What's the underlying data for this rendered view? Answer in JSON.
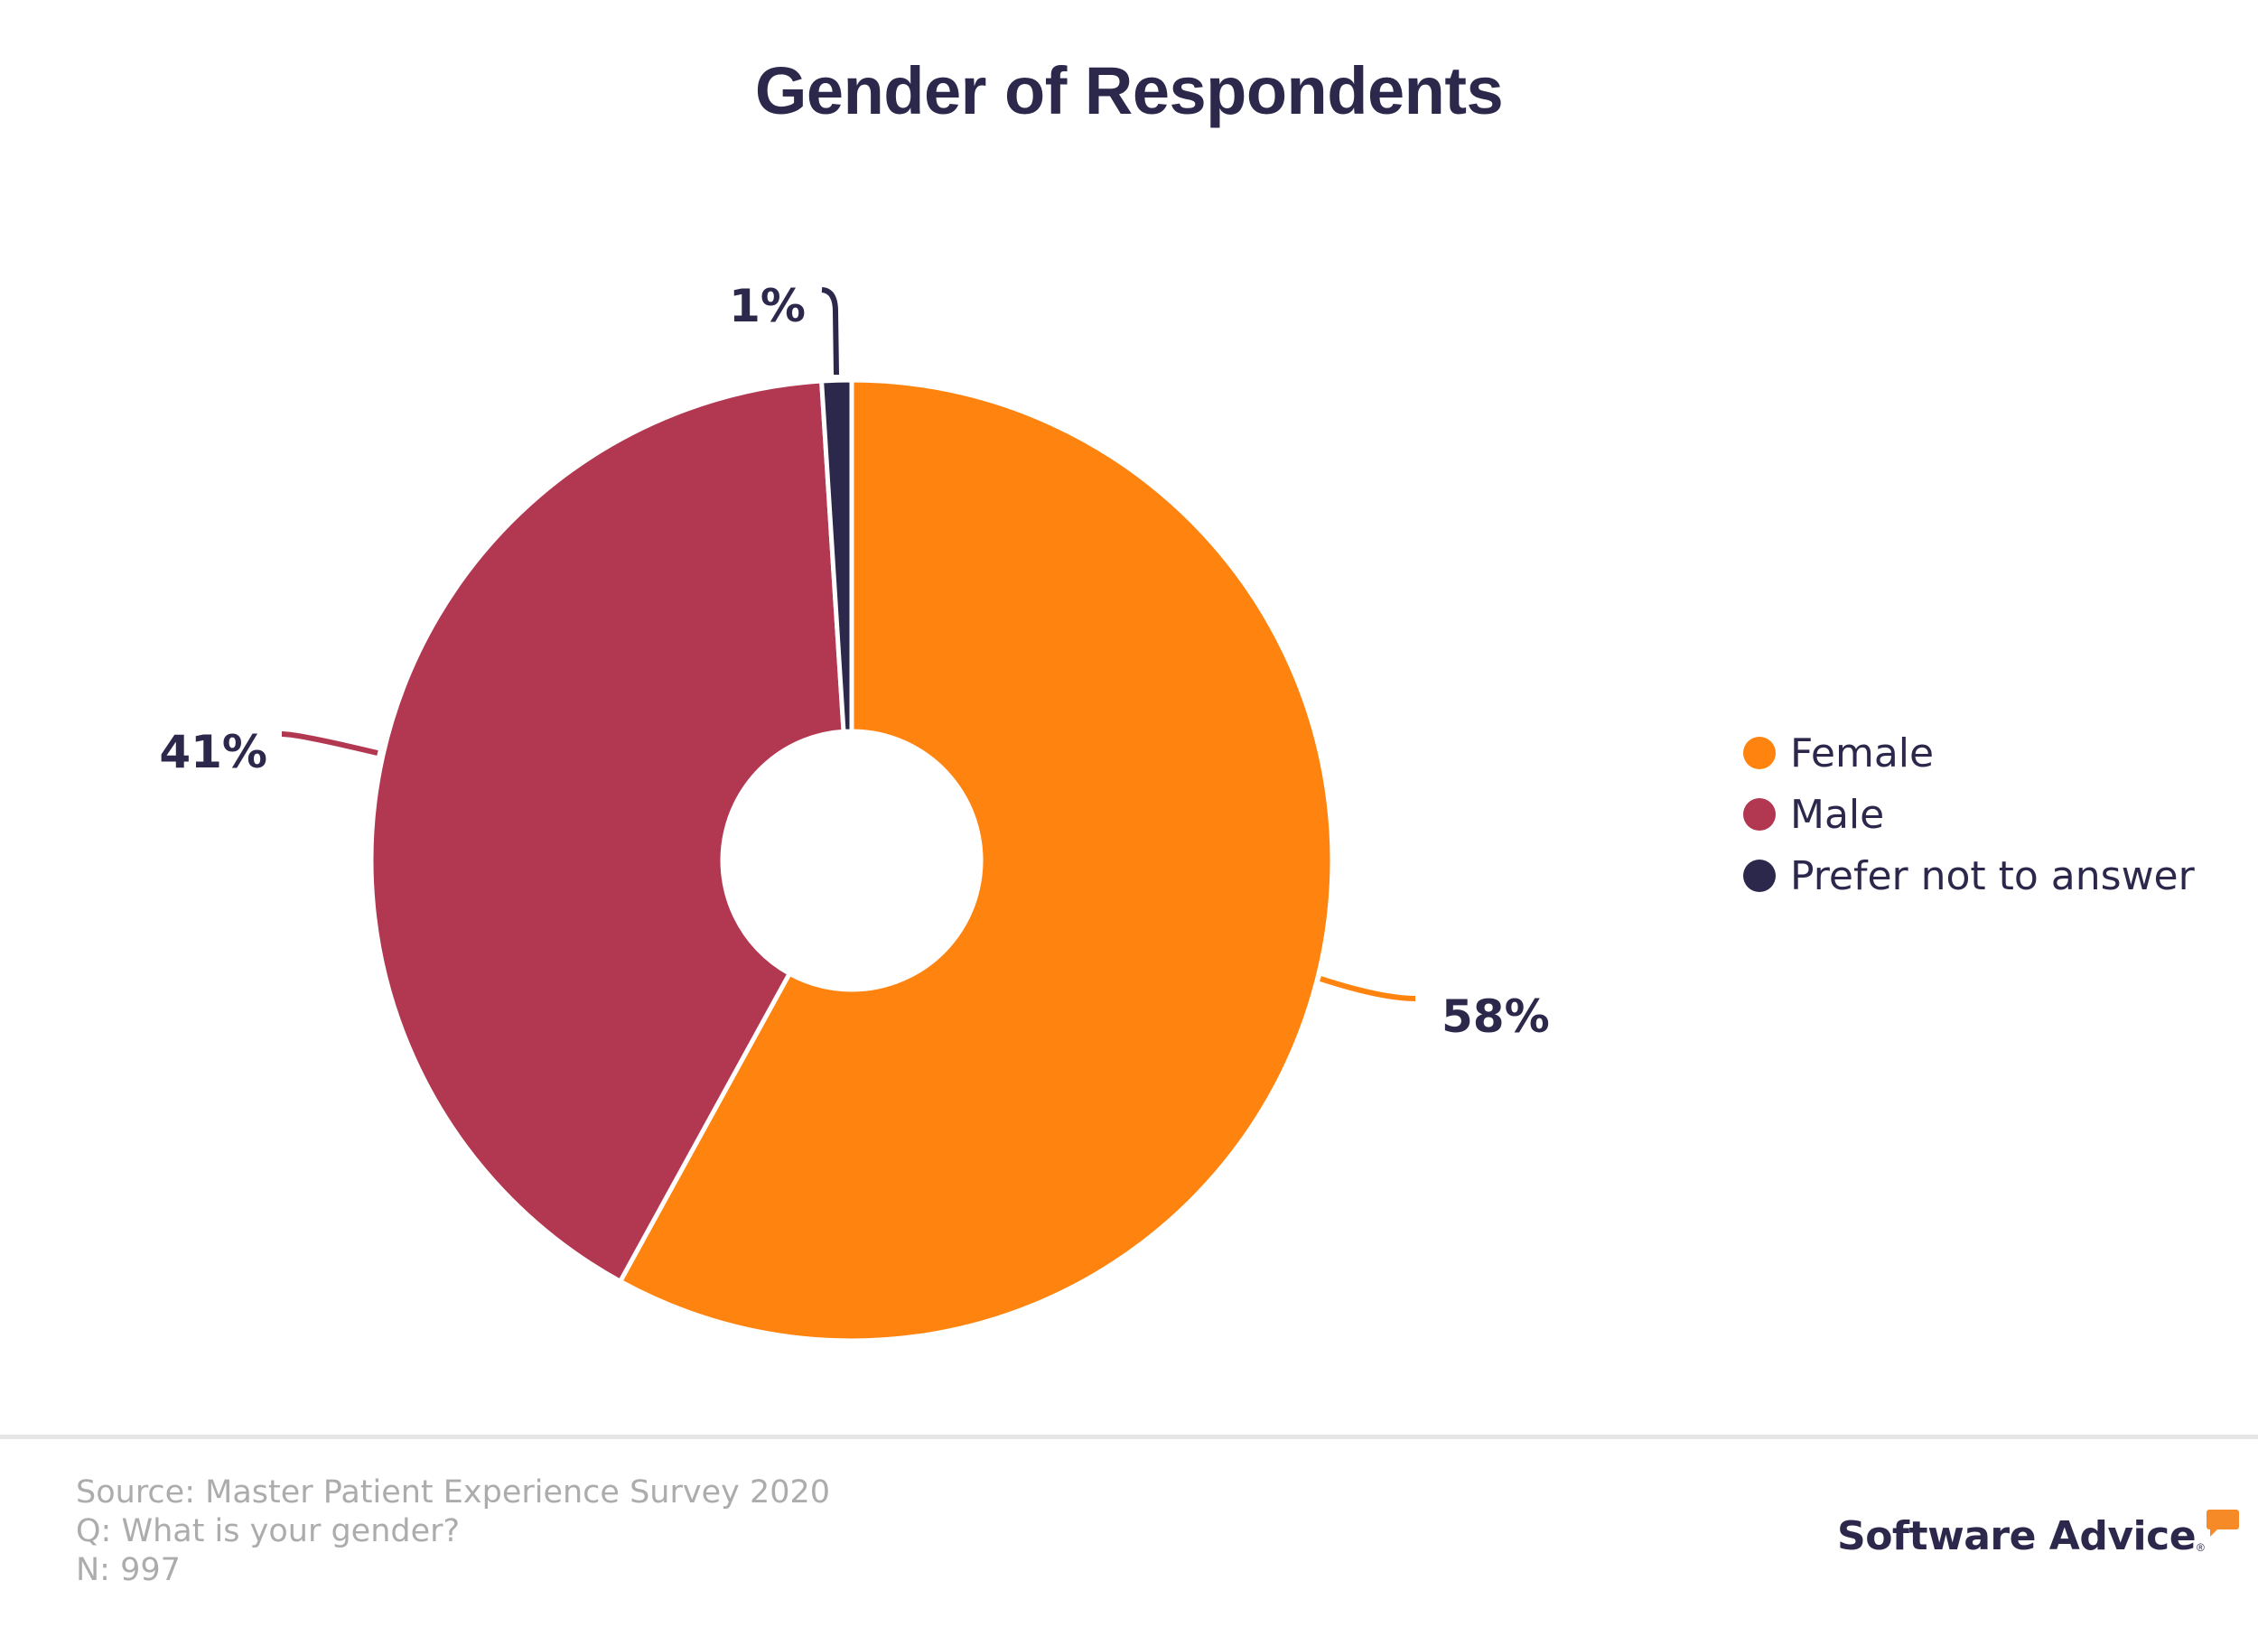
{
  "chart_data": {
    "type": "pie",
    "variant": "donut",
    "title": "Gender of Respondents",
    "categories": [
      "Female",
      "Male",
      "Prefer not to answer"
    ],
    "values": [
      58,
      41,
      1
    ],
    "unit": "%",
    "data_labels": [
      "58%",
      "41%",
      "1%"
    ],
    "colors": [
      "#ff830f",
      "#b23851",
      "#2c284c"
    ],
    "start_angle": "top (12 o'clock), clockwise",
    "legend": {
      "position": "right",
      "entries": [
        "Female",
        "Male",
        "Prefer not to answer"
      ]
    }
  },
  "footer": {
    "source": "Source: Master Patient Experience Survey 2020",
    "question": "Q: What is your gender?",
    "n": "N: 997"
  },
  "brand": {
    "name": "Software Advice",
    "registered": "®",
    "accent": "#f58a26"
  }
}
